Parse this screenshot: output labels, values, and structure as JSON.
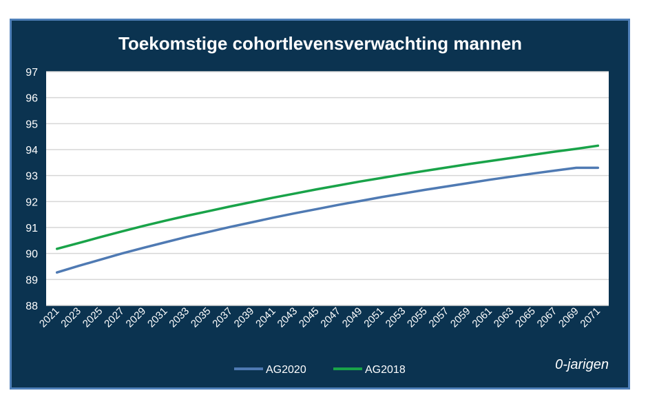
{
  "chart_data": {
    "type": "line",
    "title": "Toekomstige cohortlevensverwachting mannen",
    "xlabel": "",
    "ylabel": "",
    "note": "0-jarigen",
    "x": [
      2021,
      2023,
      2025,
      2027,
      2029,
      2031,
      2033,
      2035,
      2037,
      2039,
      2041,
      2043,
      2045,
      2047,
      2049,
      2051,
      2053,
      2055,
      2057,
      2059,
      2061,
      2063,
      2065,
      2067,
      2069,
      2071
    ],
    "ylim": [
      88,
      97
    ],
    "yticks": [
      88,
      89,
      90,
      91,
      92,
      93,
      94,
      95,
      96,
      97
    ],
    "grid": true,
    "legend_position": "bottom",
    "series": [
      {
        "name": "AG2020",
        "color": "#4f7ab3",
        "values": [
          89.27,
          89.52,
          89.76,
          90.0,
          90.22,
          90.43,
          90.64,
          90.83,
          91.02,
          91.2,
          91.38,
          91.55,
          91.71,
          91.87,
          92.02,
          92.17,
          92.31,
          92.45,
          92.58,
          92.71,
          92.84,
          92.96,
          93.08,
          93.19,
          93.3,
          93.3
        ]
      },
      {
        "name": "AG2018",
        "color": "#19a349",
        "values": [
          90.18,
          90.4,
          90.63,
          90.85,
          91.06,
          91.26,
          91.45,
          91.63,
          91.81,
          91.98,
          92.15,
          92.31,
          92.47,
          92.62,
          92.77,
          92.91,
          93.05,
          93.18,
          93.31,
          93.44,
          93.56,
          93.68,
          93.8,
          93.92,
          94.03,
          94.15
        ]
      }
    ]
  }
}
